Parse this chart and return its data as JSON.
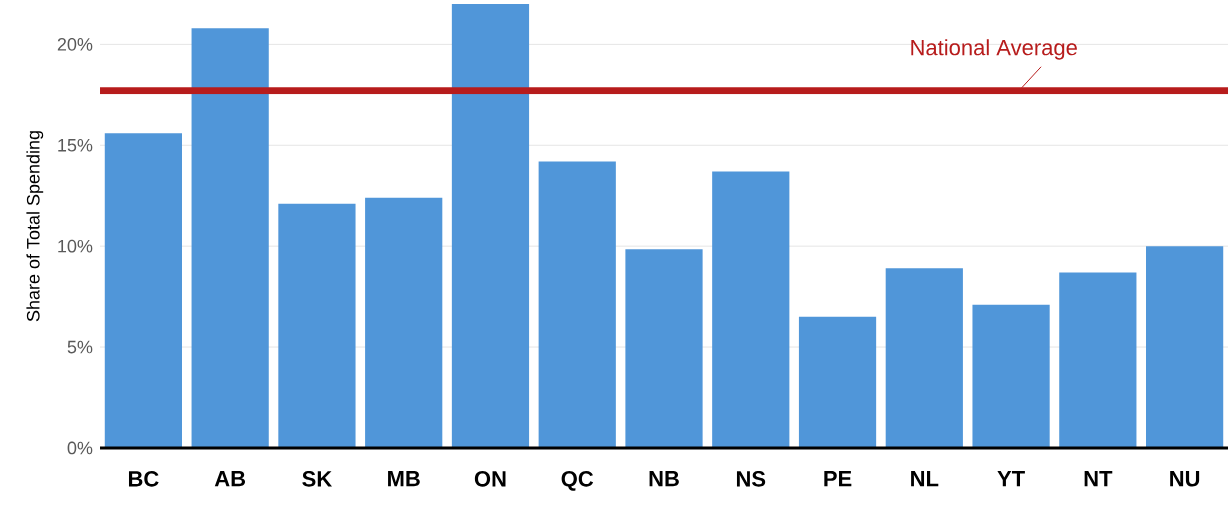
{
  "chart_data": {
    "type": "bar",
    "ylabel": "Share of Total Spending",
    "categories": [
      "BC",
      "AB",
      "SK",
      "MB",
      "ON",
      "QC",
      "NB",
      "NS",
      "PE",
      "NL",
      "YT",
      "NT",
      "NU"
    ],
    "values": [
      15.6,
      20.8,
      12.1,
      12.4,
      22,
      14.2,
      9.85,
      13.7,
      6.5,
      8.9,
      7.1,
      8.7,
      10
    ],
    "color": "#5096d9",
    "ylim": [
      0,
      22
    ],
    "yticks": [
      {
        "value": 0,
        "label": "0%"
      },
      {
        "value": 5,
        "label": "5%"
      },
      {
        "value": 10,
        "label": "10%"
      },
      {
        "value": 15,
        "label": "15%"
      },
      {
        "value": 20,
        "label": "20%"
      }
    ],
    "grid": "y",
    "ref_lines": [
      {
        "axis": "y",
        "value": 17.7,
        "label": "National Average",
        "color": "#b71c1c"
      }
    ]
  }
}
